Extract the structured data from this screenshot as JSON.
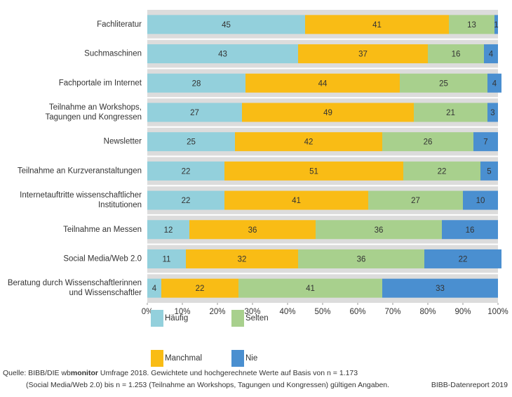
{
  "chart_data": {
    "type": "stacked-bar-horizontal",
    "categories": [
      "Fachliteratur",
      "Suchmaschinen",
      "Fachportale im Internet",
      "Teilnahme an Workshops,\nTagungen und Kongressen",
      "Newsletter",
      "Teilnahme an Kurzveranstaltungen",
      "Internetauftritte wissenschaftlicher\nInstitutionen",
      "Teilnahme an Messen",
      "Social Media/Web 2.0",
      "Beratung durch Wissenschaftlerinnen\nund Wissenschaftler"
    ],
    "series": [
      {
        "name": "Häufig",
        "color": "#93d0dc",
        "values": [
          45,
          43,
          28,
          27,
          25,
          22,
          22,
          12,
          11,
          4
        ]
      },
      {
        "name": "Manchmal",
        "color": "#f9bc15",
        "values": [
          41,
          37,
          44,
          49,
          42,
          51,
          41,
          36,
          32,
          22
        ]
      },
      {
        "name": "Selten",
        "color": "#a8d08d",
        "values": [
          13,
          16,
          25,
          21,
          26,
          22,
          27,
          36,
          36,
          41
        ]
      },
      {
        "name": "Nie",
        "color": "#4a8fd0",
        "values": [
          1,
          4,
          4,
          3,
          7,
          5,
          10,
          16,
          22,
          33
        ]
      }
    ],
    "xlim": [
      0,
      100
    ],
    "xticks": [
      {
        "value": 0,
        "label": "0%"
      },
      {
        "value": 10,
        "label": "10%"
      },
      {
        "value": 20,
        "label": "20%"
      },
      {
        "value": 30,
        "label": "30%"
      },
      {
        "value": 40,
        "label": "40%"
      },
      {
        "value": 50,
        "label": "50%"
      },
      {
        "value": 60,
        "label": "60%"
      },
      {
        "value": 70,
        "label": "70%"
      },
      {
        "value": 80,
        "label": "80%"
      },
      {
        "value": 90,
        "label": "90%"
      },
      {
        "value": 100,
        "label": "100%"
      }
    ],
    "source": [
      "Quelle: BIBB/DIE wb",
      "monitor",
      " Umfrage 2018. Gewichtete und hochgerechnete Werte auf Basis von n = 1.173",
      "(Social Media/Web 2.0) bis n = 1.253 (Teilnahme an Workshops, Tagungen und Kongressen) gültigen Angaben."
    ],
    "credit": "BIBB-Datenreport 2019"
  }
}
